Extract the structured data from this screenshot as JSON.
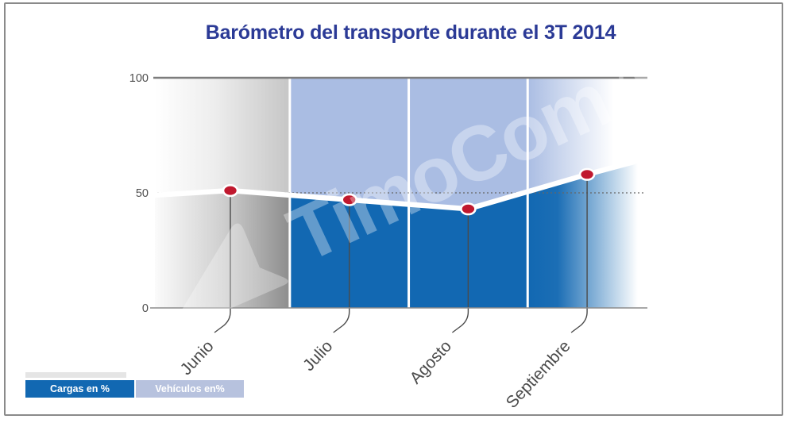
{
  "watermark": {
    "text": "TimoCom.®"
  },
  "legend": {
    "items": [
      {
        "label": "Cargas en %",
        "color": "#1268B2",
        "text_color": "#FFFFFF"
      },
      {
        "label": "Vehículos en%",
        "color": "#B7C2DE",
        "text_color": "#FFFFFF"
      }
    ]
  },
  "chart_data": {
    "type": "area",
    "title": "Barómetro del transporte durante el 3T 2014",
    "categories": [
      "Junio",
      "Julio",
      "Agosto",
      "Septiembre"
    ],
    "series": [
      {
        "name": "Cargas en %",
        "values": [
          51,
          47,
          43,
          58
        ],
        "color": "#1268B2"
      },
      {
        "name": "Vehículos en%",
        "values": [
          49,
          53,
          57,
          42
        ],
        "color": "#AABDE3"
      }
    ],
    "xlabel": "",
    "ylabel": "",
    "ylim": [
      0,
      100
    ],
    "yticks": [
      100,
      50,
      0
    ],
    "reference_line": 50,
    "line_edge_values": {
      "left": 49,
      "right": 65
    },
    "point_color": "#C0182E",
    "line_color": "#FFFFFF",
    "legend_position": "bottom-left",
    "grid": "vertical-white-month-separators"
  }
}
